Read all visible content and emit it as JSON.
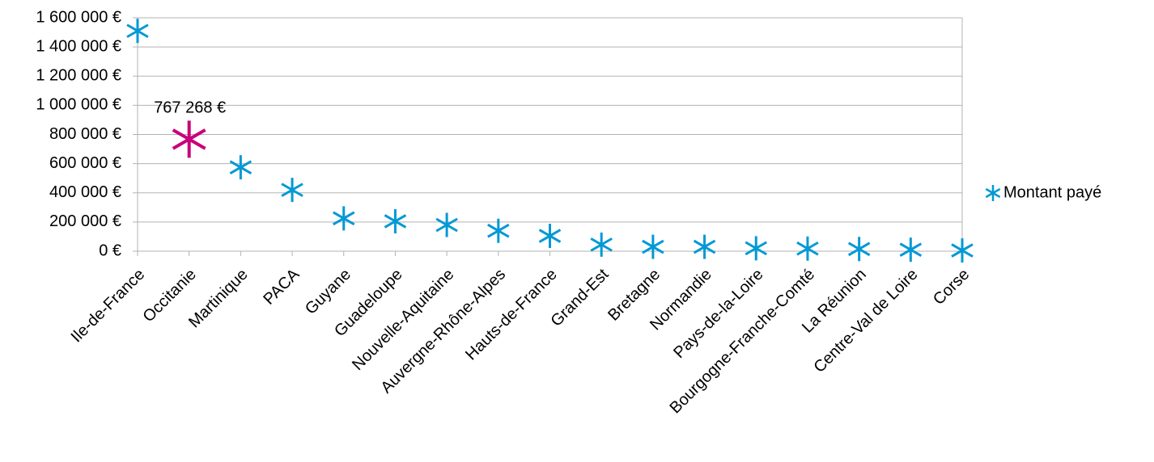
{
  "chart_data": {
    "type": "scatter",
    "marker": "asterisk",
    "categories": [
      "Ile-de-France",
      "Occitanie",
      "Martinique",
      "PACA",
      "Guyane",
      "Guadeloupe",
      "Nouvelle-Aquitaine",
      "Auvergne-Rhône-Alpes",
      "Hauts-de-France",
      "Grand-Est",
      "Bretagne",
      "Normandie",
      "Pays-de-la-Loire",
      "Bourgogne-Franche-Comté",
      "La Réunion",
      "Centre-Val de Loire",
      "Corse"
    ],
    "series": [
      {
        "name": "Montant payé",
        "color": "#0099d5",
        "values": [
          1510000,
          767268,
          575000,
          420000,
          225000,
          205000,
          180000,
          140000,
          105000,
          45000,
          30000,
          30000,
          20000,
          18000,
          15000,
          10000,
          5000
        ]
      }
    ],
    "highlight": {
      "index": 1,
      "color": "#c8007a",
      "label": "767 268 €"
    },
    "ylim": [
      0,
      1600000
    ],
    "yticks": [
      0,
      200000,
      400000,
      600000,
      800000,
      1000000,
      1200000,
      1400000,
      1600000
    ],
    "ytick_labels": [
      "0 €",
      "200 000 €",
      "400 000 €",
      "600 000 €",
      "800 000 €",
      "1 000 000 €",
      "1 200 000 €",
      "1 400 000 €",
      "1 600 000 €"
    ],
    "title": "",
    "xlabel": "",
    "ylabel": "",
    "grid": true,
    "legend_position": "right"
  },
  "colors": {
    "gridline": "#b3b3b3",
    "axis": "#b3b3b3"
  }
}
